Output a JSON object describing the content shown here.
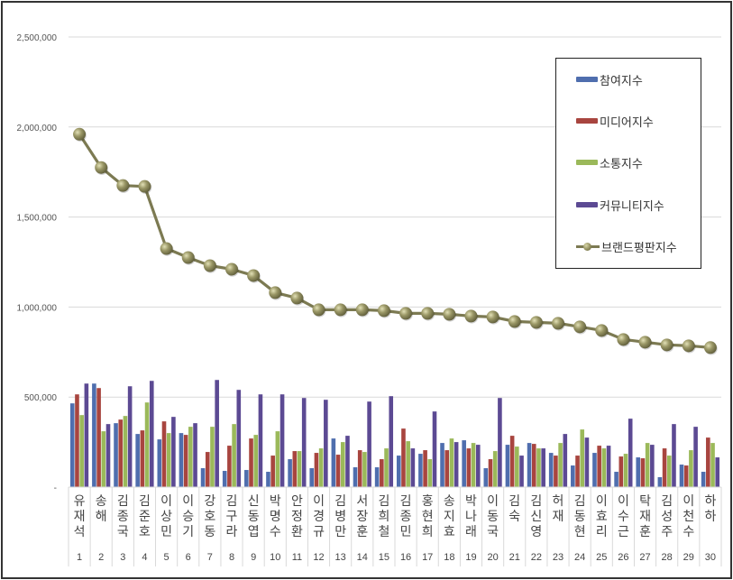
{
  "chart_data": {
    "type": "bar+line",
    "title": "",
    "xlabel": "",
    "ylabel": "",
    "ylim": [
      0,
      2500000
    ],
    "yticks": [
      0,
      500000,
      1000000,
      1500000,
      2000000,
      2500000
    ],
    "ytick_labels": [
      "-",
      "500,000",
      "1,000,000",
      "1,500,000",
      "2,000,000",
      "2,500,000"
    ],
    "grid": true,
    "legend_position": "upper-right (inside)",
    "categories": [
      "유재석",
      "송해",
      "김종국",
      "김준호",
      "이상민",
      "이승기",
      "강호동",
      "김구라",
      "신동엽",
      "박명수",
      "안정환",
      "이경규",
      "김병만",
      "서장훈",
      "김희철",
      "김종민",
      "홍현희",
      "송지효",
      "박나래",
      "이동국",
      "김숙",
      "김신영",
      "허재",
      "김동현",
      "이효리",
      "이수근",
      "탁재훈",
      "김성주",
      "이천수",
      "하하"
    ],
    "ranks": [
      "1",
      "2",
      "3",
      "4",
      "5",
      "6",
      "7",
      "8",
      "9",
      "10",
      "11",
      "12",
      "13",
      "14",
      "15",
      "16",
      "17",
      "18",
      "19",
      "20",
      "21",
      "22",
      "23",
      "24",
      "25",
      "26",
      "27",
      "28",
      "29",
      "30"
    ],
    "series": [
      {
        "name": "참여지수",
        "type": "bar",
        "color": "#4f6eae",
        "values": [
          465000,
          575000,
          355000,
          295000,
          265000,
          300000,
          105000,
          90000,
          95000,
          85000,
          155000,
          105000,
          270000,
          110000,
          110000,
          175000,
          185000,
          245000,
          260000,
          105000,
          235000,
          245000,
          190000,
          120000,
          190000,
          85000,
          165000,
          55000,
          125000,
          85000
        ]
      },
      {
        "name": "미디어지수",
        "type": "bar",
        "color": "#a8453f",
        "values": [
          515000,
          550000,
          375000,
          315000,
          365000,
          290000,
          195000,
          230000,
          270000,
          175000,
          200000,
          190000,
          180000,
          205000,
          155000,
          325000,
          205000,
          205000,
          215000,
          155000,
          285000,
          240000,
          175000,
          175000,
          230000,
          170000,
          160000,
          215000,
          120000,
          275000
        ]
      },
      {
        "name": "소통지수",
        "type": "bar",
        "color": "#9bb95a",
        "values": [
          400000,
          310000,
          395000,
          470000,
          300000,
          335000,
          335000,
          350000,
          290000,
          310000,
          200000,
          215000,
          250000,
          195000,
          215000,
          255000,
          155000,
          270000,
          245000,
          200000,
          225000,
          215000,
          245000,
          320000,
          215000,
          185000,
          245000,
          175000,
          205000,
          245000
        ]
      },
      {
        "name": "커뮤니티지수",
        "type": "bar",
        "color": "#5c4a93",
        "values": [
          575000,
          350000,
          560000,
          590000,
          390000,
          355000,
          595000,
          540000,
          515000,
          515000,
          495000,
          485000,
          285000,
          475000,
          505000,
          215000,
          420000,
          250000,
          235000,
          495000,
          175000,
          215000,
          295000,
          275000,
          230000,
          380000,
          235000,
          350000,
          335000,
          165000
        ]
      },
      {
        "name": "브랜드평판지수",
        "type": "line",
        "color": "#7c7a52",
        "values": [
          1960000,
          1775000,
          1675000,
          1670000,
          1325000,
          1275000,
          1230000,
          1210000,
          1175000,
          1080000,
          1050000,
          985000,
          985000,
          985000,
          980000,
          965000,
          965000,
          960000,
          950000,
          945000,
          920000,
          915000,
          910000,
          890000,
          870000,
          820000,
          805000,
          790000,
          785000,
          775000
        ]
      }
    ]
  },
  "legend": {
    "items": [
      {
        "label": "참여지수",
        "color": "#4f6eae"
      },
      {
        "label": "미디어지수",
        "color": "#a8453f"
      },
      {
        "label": "소통지수",
        "color": "#9bb95a"
      },
      {
        "label": "커뮤니티지수",
        "color": "#5c4a93"
      },
      {
        "label": "브랜드평판지수",
        "color": "#7c7a52"
      }
    ]
  }
}
